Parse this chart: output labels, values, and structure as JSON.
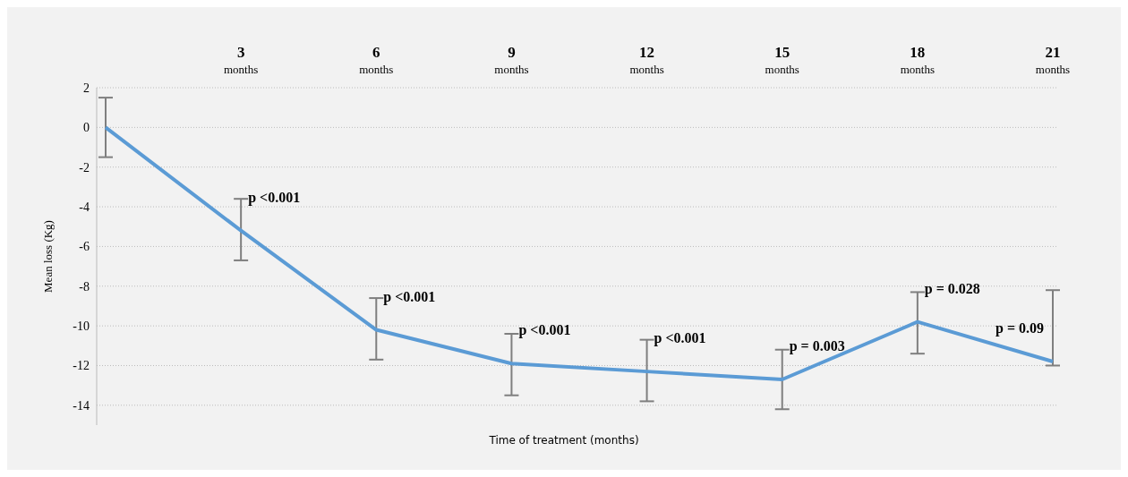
{
  "chart_data": {
    "type": "line",
    "xlabel": "Time of treatment (months)",
    "ylabel": "Mean loss (Kg)",
    "categories": [
      null,
      "3 months",
      "6 months",
      "9 months",
      "12 months",
      "15 months",
      "18 months",
      "21 months"
    ],
    "series": [
      {
        "color": "#5b9bd5",
        "values": [
          0,
          -5.2,
          -10.2,
          -11.9,
          -12.3,
          -12.7,
          -9.8,
          -11.8
        ],
        "errors": [
          [
            -1.5,
            1.5
          ],
          [
            -6.7,
            -3.6
          ],
          [
            -11.7,
            -8.6
          ],
          [
            -13.5,
            -10.4
          ],
          [
            -13.8,
            -10.7
          ],
          [
            -14.2,
            -11.2
          ],
          [
            -11.4,
            -8.3
          ],
          [
            -12.0,
            -8.2
          ]
        ]
      }
    ],
    "ylim": [
      -15,
      2
    ],
    "yticks": [
      2,
      0,
      -2,
      -4,
      -6,
      -8,
      -10,
      -12,
      -14
    ],
    "grid": "y",
    "legend": false,
    "marker": "none",
    "line_style": "solid",
    "annotations": [
      {
        "text": "p <0.001",
        "x": "3 months",
        "y": -5.2
      },
      {
        "text": "p <0.001",
        "x": "6 months",
        "y": -10.2
      },
      {
        "text": "p <0.001",
        "x": "9 months",
        "y": -11.9
      },
      {
        "text": "p <0.001",
        "x": "12 months",
        "y": -12.3
      },
      {
        "text": "p = 0.003",
        "x": "15 months",
        "y": -12.7
      },
      {
        "text": "p = 0.028",
        "x": "18 months",
        "y": -9.8
      },
      {
        "text": "p = 0.09",
        "x": "21 months",
        "y": -11.8
      }
    ]
  }
}
